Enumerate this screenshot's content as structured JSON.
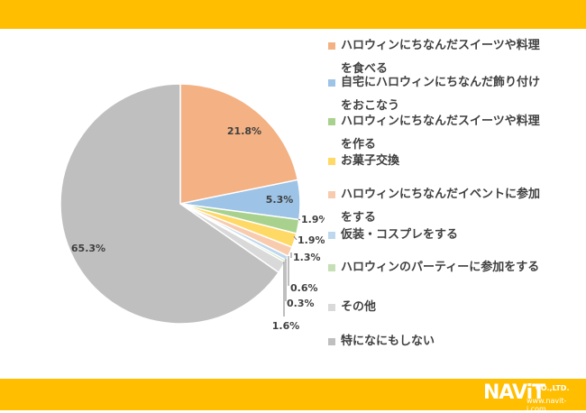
{
  "chart_data": {
    "type": "pie",
    "categories": [
      "ハロウィンにちなんだスイーツや料理を食べる",
      "自宅にハロウィンにちなんだ飾り付けをおこなう",
      "ハロウィンにちなんだスイーツや料理を作る",
      "お菓子交換",
      "ハロウィンにちなんだイベントに参加をする",
      "仮装・コスプレをする",
      "ハロウィンのパーティーに参加をする",
      "その他",
      "特になにもしない"
    ],
    "legend_lines": [
      [
        "ハロウィンにちなんだスイーツや料理",
        "を食べる"
      ],
      [
        "自宅にハロウィンにちなんだ飾り付け",
        "をおこなう"
      ],
      [
        "ハロウィンにちなんだスイーツや料理",
        "を作る"
      ],
      [
        "お菓子交換"
      ],
      [
        "ハロウィンにちなんだイベントに参加",
        "をする"
      ],
      [
        "仮装・コスプレをする"
      ],
      [
        "ハロウィンのパーティーに参加をする"
      ],
      [
        "その他"
      ],
      [
        "特になにもしない"
      ]
    ],
    "values": [
      21.8,
      5.3,
      1.9,
      1.9,
      1.3,
      0.6,
      0.3,
      1.6,
      65.3
    ],
    "data_labels": [
      "21.8%",
      "5.3%",
      "1.9%",
      "1.9%",
      "1.3%",
      "0.6%",
      "0.3%",
      "1.6%",
      "65.3%"
    ],
    "colors": [
      "#F4B183",
      "#9DC3E6",
      "#A9D18E",
      "#FFD966",
      "#F8CBAD",
      "#BDD7EE",
      "#C5E0B4",
      "#D9D9D9",
      "#BFBFBF"
    ],
    "legend_position": "right",
    "start_angle_deg": 0,
    "direction": "clockwise"
  },
  "logo": {
    "main": "NAViT",
    "suffix": "CO.,LTD.",
    "url": "www.navit-j.com"
  }
}
